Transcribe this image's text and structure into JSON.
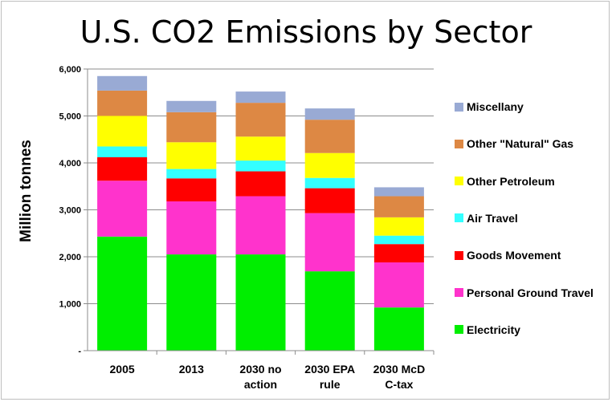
{
  "chart_data": {
    "type": "bar",
    "stacked": true,
    "title": "U.S. CO2 Emissions by Sector",
    "xlabel": "",
    "ylabel": "Million tonnes",
    "ylim": [
      0,
      6000
    ],
    "yticks": [
      {
        "value": 0,
        "label": "-"
      },
      {
        "value": 1000,
        "label": "1,000"
      },
      {
        "value": 2000,
        "label": "2,000"
      },
      {
        "value": 3000,
        "label": "3,000"
      },
      {
        "value": 4000,
        "label": "4,000"
      },
      {
        "value": 5000,
        "label": "5,000"
      },
      {
        "value": 6000,
        "label": "6,000"
      }
    ],
    "grid": true,
    "legend_position": "right",
    "categories": [
      [
        "2005"
      ],
      [
        "2013"
      ],
      [
        "2030 no",
        "action"
      ],
      [
        "2030 EPA",
        "rule"
      ],
      [
        "2030 McD",
        "C-tax"
      ]
    ],
    "series": [
      {
        "name": "Electricity",
        "color": "#00ee00",
        "values": [
          2430,
          2050,
          2050,
          1690,
          920
        ]
      },
      {
        "name": "Personal Ground Travel",
        "color": "#ff33cc",
        "values": [
          1190,
          1130,
          1240,
          1240,
          960
        ]
      },
      {
        "name": "Goods Movement",
        "color": "#ff0000",
        "values": [
          500,
          490,
          530,
          530,
          390
        ]
      },
      {
        "name": "Air Travel",
        "color": "#33ffff",
        "values": [
          230,
          200,
          230,
          220,
          180
        ]
      },
      {
        "name": "Other Petroleum",
        "color": "#ffff00",
        "values": [
          650,
          570,
          510,
          530,
          390
        ]
      },
      {
        "name": "Other \"Natural\" Gas",
        "color": "#dd8844",
        "values": [
          540,
          640,
          720,
          710,
          450
        ]
      },
      {
        "name": "Miscellany",
        "color": "#99aad4",
        "values": [
          310,
          240,
          240,
          240,
          190
        ]
      }
    ],
    "legend_order": [
      "Miscellany",
      "Other \"Natural\" Gas",
      "Other Petroleum",
      "Air Travel",
      "Goods Movement",
      "Personal Ground Travel",
      "Electricity"
    ]
  }
}
